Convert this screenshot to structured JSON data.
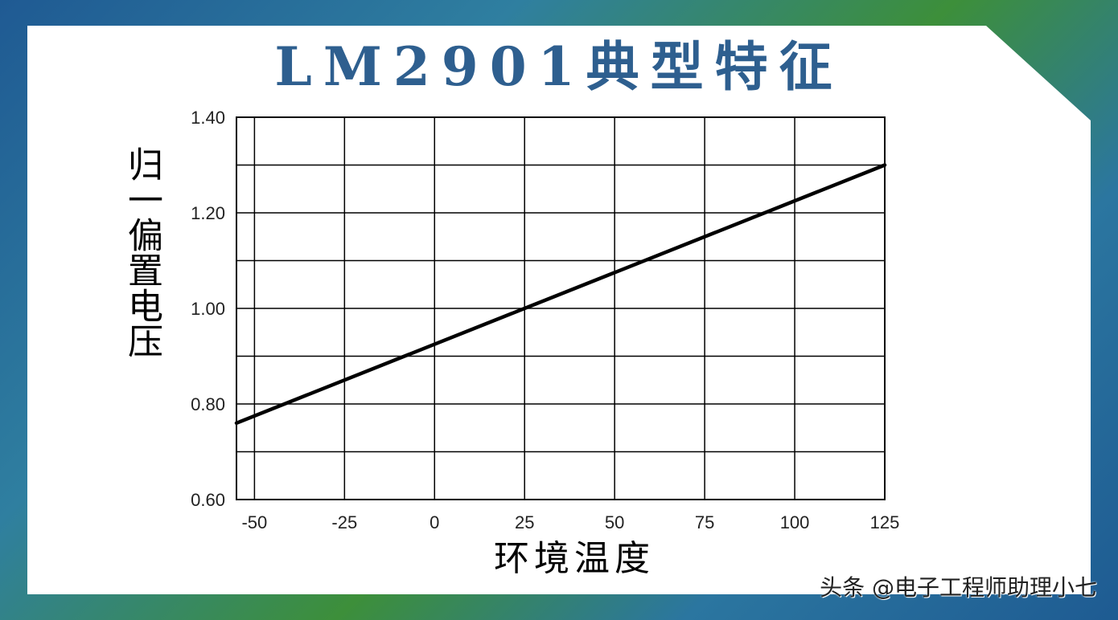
{
  "chart_data": {
    "type": "line",
    "title": "LM2901典型特征",
    "xlabel": "环境温度",
    "ylabel": "归一偏置电压",
    "xlim": [
      -55,
      125
    ],
    "ylim": [
      0.6,
      1.4
    ],
    "x_ticks": [
      -50,
      -25,
      0,
      25,
      50,
      75,
      100,
      125
    ],
    "x_tick_labels": [
      "-50",
      "-25",
      "0",
      "25",
      "50",
      "75",
      "100",
      "125"
    ],
    "y_ticks": [
      0.6,
      0.8,
      1.0,
      1.2,
      1.4
    ],
    "y_tick_labels": [
      "0.60",
      "0.80",
      "1.00",
      "1.20",
      "1.40"
    ],
    "grid": true,
    "series": [
      {
        "x": [
          -55,
          125
        ],
        "y": [
          0.76,
          1.3
        ],
        "color": "#000000"
      }
    ]
  },
  "watermark": "头条 @电子工程师助理小七"
}
